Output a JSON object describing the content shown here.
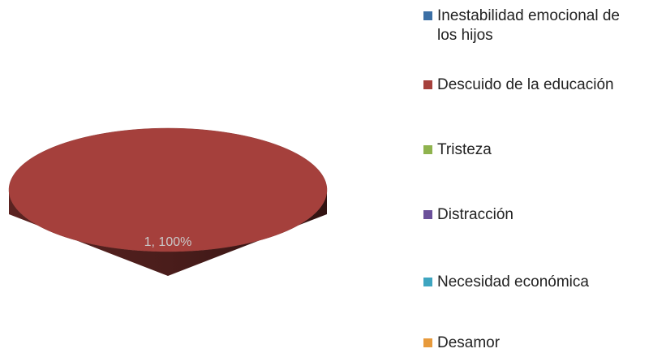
{
  "chart_data": {
    "type": "pie",
    "categories": [
      "Inestabilidad emocional de los hijos",
      "Descuido de la educación",
      "Tristeza",
      "Distracción",
      "Necesidad económica",
      "Desamor"
    ],
    "values": [
      0,
      1,
      0,
      0,
      0,
      0
    ],
    "value_labels": [
      null,
      "1, 100%",
      null,
      null,
      null,
      null
    ],
    "colors": [
      "#3b6fa5",
      "#a5403c",
      "#8fb34e",
      "#6b509a",
      "#3ea5c0",
      "#e79a3c"
    ],
    "legend": "right"
  }
}
